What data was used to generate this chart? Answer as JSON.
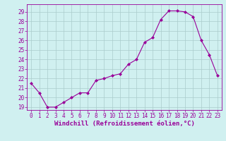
{
  "x": [
    0,
    1,
    2,
    3,
    4,
    5,
    6,
    7,
    8,
    9,
    10,
    11,
    12,
    13,
    14,
    15,
    16,
    17,
    18,
    19,
    20,
    21,
    22,
    23
  ],
  "y": [
    21.5,
    20.5,
    19.0,
    19.0,
    19.5,
    20.0,
    20.5,
    20.5,
    21.8,
    22.0,
    22.3,
    22.5,
    23.5,
    24.0,
    25.8,
    26.3,
    28.2,
    29.1,
    29.1,
    29.0,
    28.5,
    26.0,
    24.5,
    22.3
  ],
  "line_color": "#990099",
  "marker": "D",
  "markersize": 2,
  "bg_color": "#d0f0f0",
  "grid_color": "#aacccc",
  "xlabel": "Windchill (Refroidissement éolien,°C)",
  "ylim_min": 19,
  "ylim_max": 30,
  "xlim_min": -0.5,
  "xlim_max": 23.5,
  "yticks": [
    19,
    20,
    21,
    22,
    23,
    24,
    25,
    26,
    27,
    28,
    29
  ],
  "xticks": [
    0,
    1,
    2,
    3,
    4,
    5,
    6,
    7,
    8,
    9,
    10,
    11,
    12,
    13,
    14,
    15,
    16,
    17,
    18,
    19,
    20,
    21,
    22,
    23
  ],
  "xlabel_fontsize": 6.5,
  "tick_fontsize": 5.5
}
